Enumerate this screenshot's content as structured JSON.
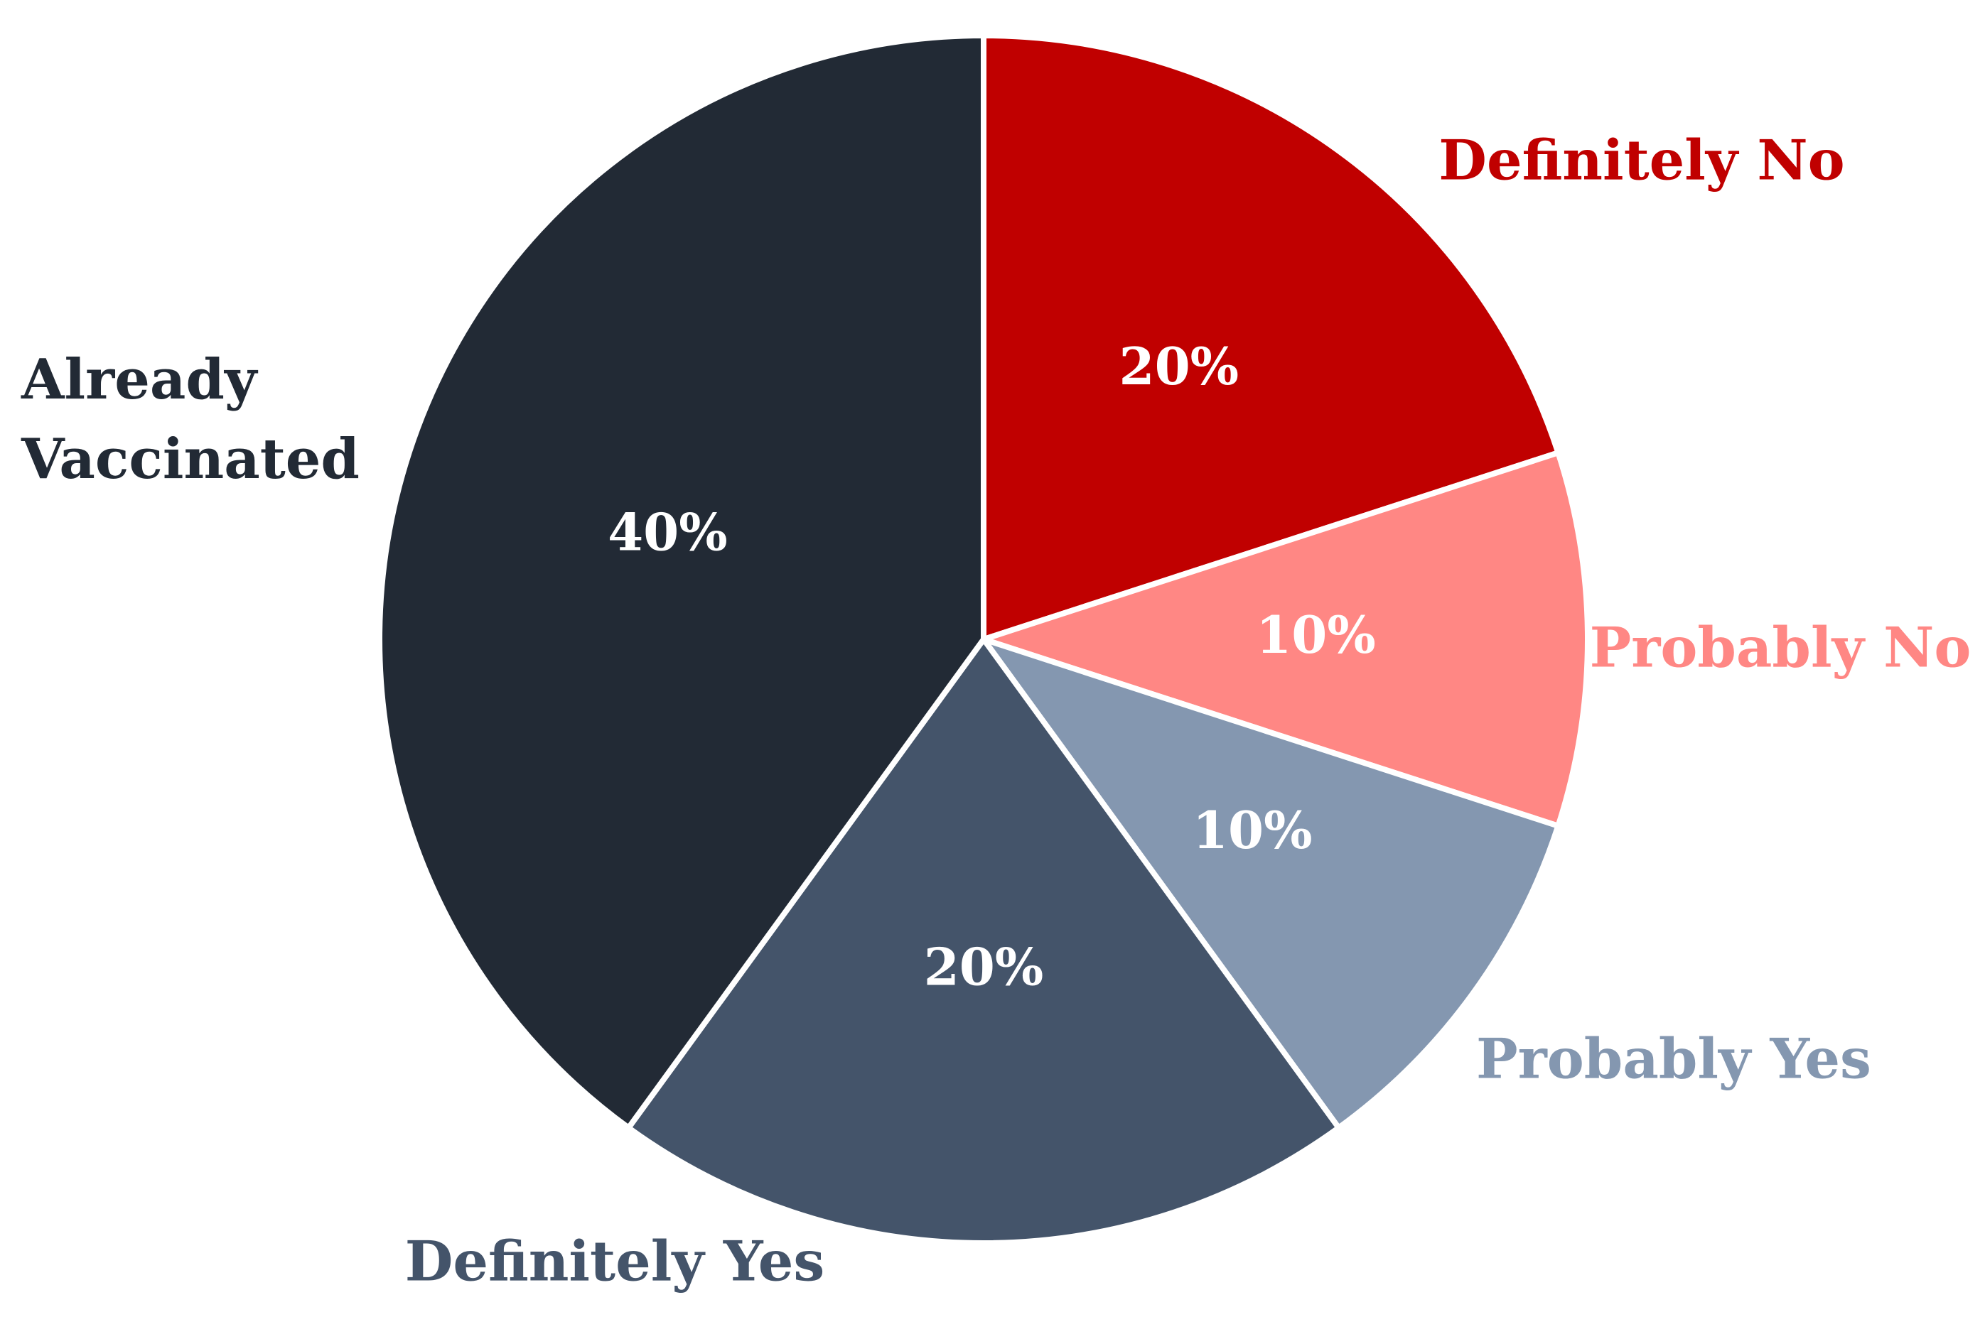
{
  "chart_data": {
    "type": "pie",
    "title": "",
    "start_angle_deg": 0,
    "direction": "clockwise",
    "slices": [
      {
        "label": "Definitely No",
        "value": 20,
        "value_label": "20%",
        "color": "#C00000",
        "label_color": "#C00000"
      },
      {
        "label": "Probably No",
        "value": 10,
        "value_label": "10%",
        "color": "#FF8784",
        "label_color": "#FF8784"
      },
      {
        "label": "Probably Yes",
        "value": 10,
        "value_label": "10%",
        "color": "#8497B0",
        "label_color": "#8497B0"
      },
      {
        "label": "Definitely Yes",
        "value": 20,
        "value_label": "20%",
        "color": "#44546A",
        "label_color": "#44546A"
      },
      {
        "label": "Already Vaccinated",
        "label_lines": [
          "Already",
          "Vaccinated"
        ],
        "value": 40,
        "value_label": "40%",
        "color": "#222A35",
        "label_color": "#222A35"
      }
    ],
    "slice_separator_color": "#ffffff",
    "legend": "none"
  }
}
